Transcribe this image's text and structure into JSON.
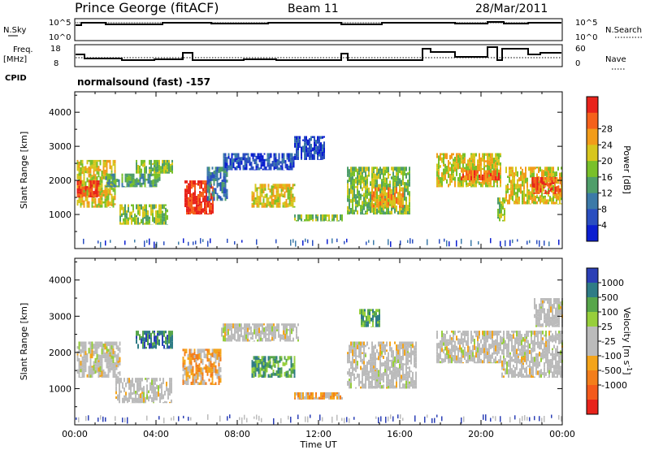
{
  "header": {
    "title": "Prince George (fitACF)",
    "beam": "Beam 11",
    "date": "28/Mar/2011"
  },
  "panels": {
    "nsky": {
      "left_label": "N.Sky",
      "right_label": "N.Search",
      "left_ticks": [
        "10^5",
        "10^0"
      ],
      "right_ticks": [
        "10^5",
        "10^0"
      ]
    },
    "freq": {
      "left_label_1": "Freq.",
      "left_label_2": "[MHz]",
      "right_label": "Nave",
      "left_ticks": [
        "18",
        "8"
      ],
      "right_ticks": [
        "60",
        "0"
      ]
    },
    "cpid": {
      "label": "CPID",
      "text": "normalsound (fast) -157"
    }
  },
  "chart_data": [
    {
      "type": "heatmap",
      "name_on_chart": "power",
      "ylabel": "Slant Range [km]",
      "yticks": [
        1000,
        2000,
        3000,
        4000
      ],
      "ylim": [
        0,
        4600
      ],
      "xlabel": "Time UT",
      "xticks": [
        "00:00",
        "04:00",
        "08:00",
        "12:00",
        "16:00",
        "20:00",
        "00:00"
      ],
      "xlim_hours": [
        0,
        24
      ],
      "colorbar_label": "Power [dB]",
      "colorbar_ticks": [
        "4",
        "8",
        "12",
        "16",
        "20",
        "24",
        "28"
      ],
      "colorbar_colors": [
        "#0b1ed0",
        "#2a4ec0",
        "#3c7aa8",
        "#4f9e6a",
        "#79c02a",
        "#d7c61e",
        "#f29c1a",
        "#f5611b",
        "#e8231b"
      ],
      "regions": [
        {
          "t0": 0.1,
          "t1": 2.0,
          "r0": 1200,
          "r1": 2600,
          "level": 5
        },
        {
          "t0": 0.1,
          "t1": 1.2,
          "r0": 1500,
          "r1": 2000,
          "level": 8
        },
        {
          "t0": 1.5,
          "t1": 4.2,
          "r0": 1800,
          "r1": 2200,
          "level": 3
        },
        {
          "t0": 2.2,
          "t1": 4.6,
          "r0": 700,
          "r1": 1300,
          "level": 4
        },
        {
          "t0": 3.0,
          "t1": 4.8,
          "r0": 2200,
          "r1": 2600,
          "level": 4
        },
        {
          "t0": 5.4,
          "t1": 6.8,
          "r0": 1000,
          "r1": 2000,
          "level": 8
        },
        {
          "t0": 6.5,
          "t1": 7.5,
          "r0": 1400,
          "r1": 2400,
          "level": 2
        },
        {
          "t0": 7.3,
          "t1": 10.8,
          "r0": 2300,
          "r1": 2800,
          "level": 1
        },
        {
          "t0": 8.7,
          "t1": 10.8,
          "r0": 1200,
          "r1": 1900,
          "level": 5
        },
        {
          "t0": 10.8,
          "t1": 12.3,
          "r0": 2600,
          "r1": 3300,
          "level": 1
        },
        {
          "t0": 10.8,
          "t1": 13.2,
          "r0": 800,
          "r1": 1000,
          "level": 4
        },
        {
          "t0": 13.4,
          "t1": 16.5,
          "r0": 1000,
          "r1": 2400,
          "level": 4
        },
        {
          "t0": 14.6,
          "t1": 16.2,
          "r0": 1200,
          "r1": 1800,
          "level": 6
        },
        {
          "t0": 17.8,
          "t1": 21.0,
          "r0": 1800,
          "r1": 2800,
          "level": 5
        },
        {
          "t0": 19.0,
          "t1": 21.0,
          "r0": 2000,
          "r1": 2300,
          "level": 7
        },
        {
          "t0": 20.8,
          "t1": 21.2,
          "r0": 800,
          "r1": 1500,
          "level": 4
        },
        {
          "t0": 21.2,
          "t1": 24.0,
          "r0": 1300,
          "r1": 2400,
          "level": 5
        },
        {
          "t0": 22.5,
          "t1": 24.0,
          "r0": 1600,
          "r1": 2100,
          "level": 7
        }
      ]
    },
    {
      "type": "heatmap",
      "name_on_chart": "velocity",
      "ylabel": "Slant Range [km]",
      "yticks": [
        1000,
        2000,
        3000,
        4000
      ],
      "ylim": [
        0,
        4600
      ],
      "xlabel": "Time UT",
      "xticks": [
        "00:00",
        "04:00",
        "08:00",
        "12:00",
        "16:00",
        "20:00",
        "00:00"
      ],
      "xlim_hours": [
        0,
        24
      ],
      "colorbar_label": "Velocity [m s^-1]",
      "colorbar_ticks": [
        "1000",
        "500",
        "100",
        "25",
        "-25",
        "-100",
        "-500",
        "-1000"
      ],
      "colorbar_colors": [
        "#2b3fb6",
        "#2f7c86",
        "#57a64a",
        "#97cf3b",
        "#bbbbbb",
        "#bbbbbb",
        "#f4a41a",
        "#f37e1b",
        "#f45a1b",
        "#e8231b"
      ],
      "regions": [
        {
          "t0": 0.1,
          "t1": 2.2,
          "r0": 1300,
          "r1": 2300,
          "level": 4
        },
        {
          "t0": 2.0,
          "t1": 4.8,
          "r0": 600,
          "r1": 1300,
          "level": 4
        },
        {
          "t0": 3.0,
          "t1": 4.8,
          "r0": 2100,
          "r1": 2600,
          "level": 1
        },
        {
          "t0": 5.3,
          "t1": 7.2,
          "r0": 1100,
          "r1": 2100,
          "level": 6
        },
        {
          "t0": 7.2,
          "t1": 11.0,
          "r0": 2300,
          "r1": 2800,
          "level": 4
        },
        {
          "t0": 8.7,
          "t1": 10.8,
          "r0": 1300,
          "r1": 1900,
          "level": 2
        },
        {
          "t0": 10.8,
          "t1": 13.2,
          "r0": 700,
          "r1": 900,
          "level": 6
        },
        {
          "t0": 13.4,
          "t1": 16.8,
          "r0": 1000,
          "r1": 2300,
          "level": 4
        },
        {
          "t0": 14.0,
          "t1": 15.0,
          "r0": 2700,
          "r1": 3200,
          "level": 2
        },
        {
          "t0": 17.8,
          "t1": 21.0,
          "r0": 1700,
          "r1": 2600,
          "level": 4
        },
        {
          "t0": 21.0,
          "t1": 24.0,
          "r0": 1300,
          "r1": 2600,
          "level": 4
        },
        {
          "t0": 22.6,
          "t1": 24.0,
          "r0": 2700,
          "r1": 3500,
          "level": 4
        }
      ]
    }
  ]
}
